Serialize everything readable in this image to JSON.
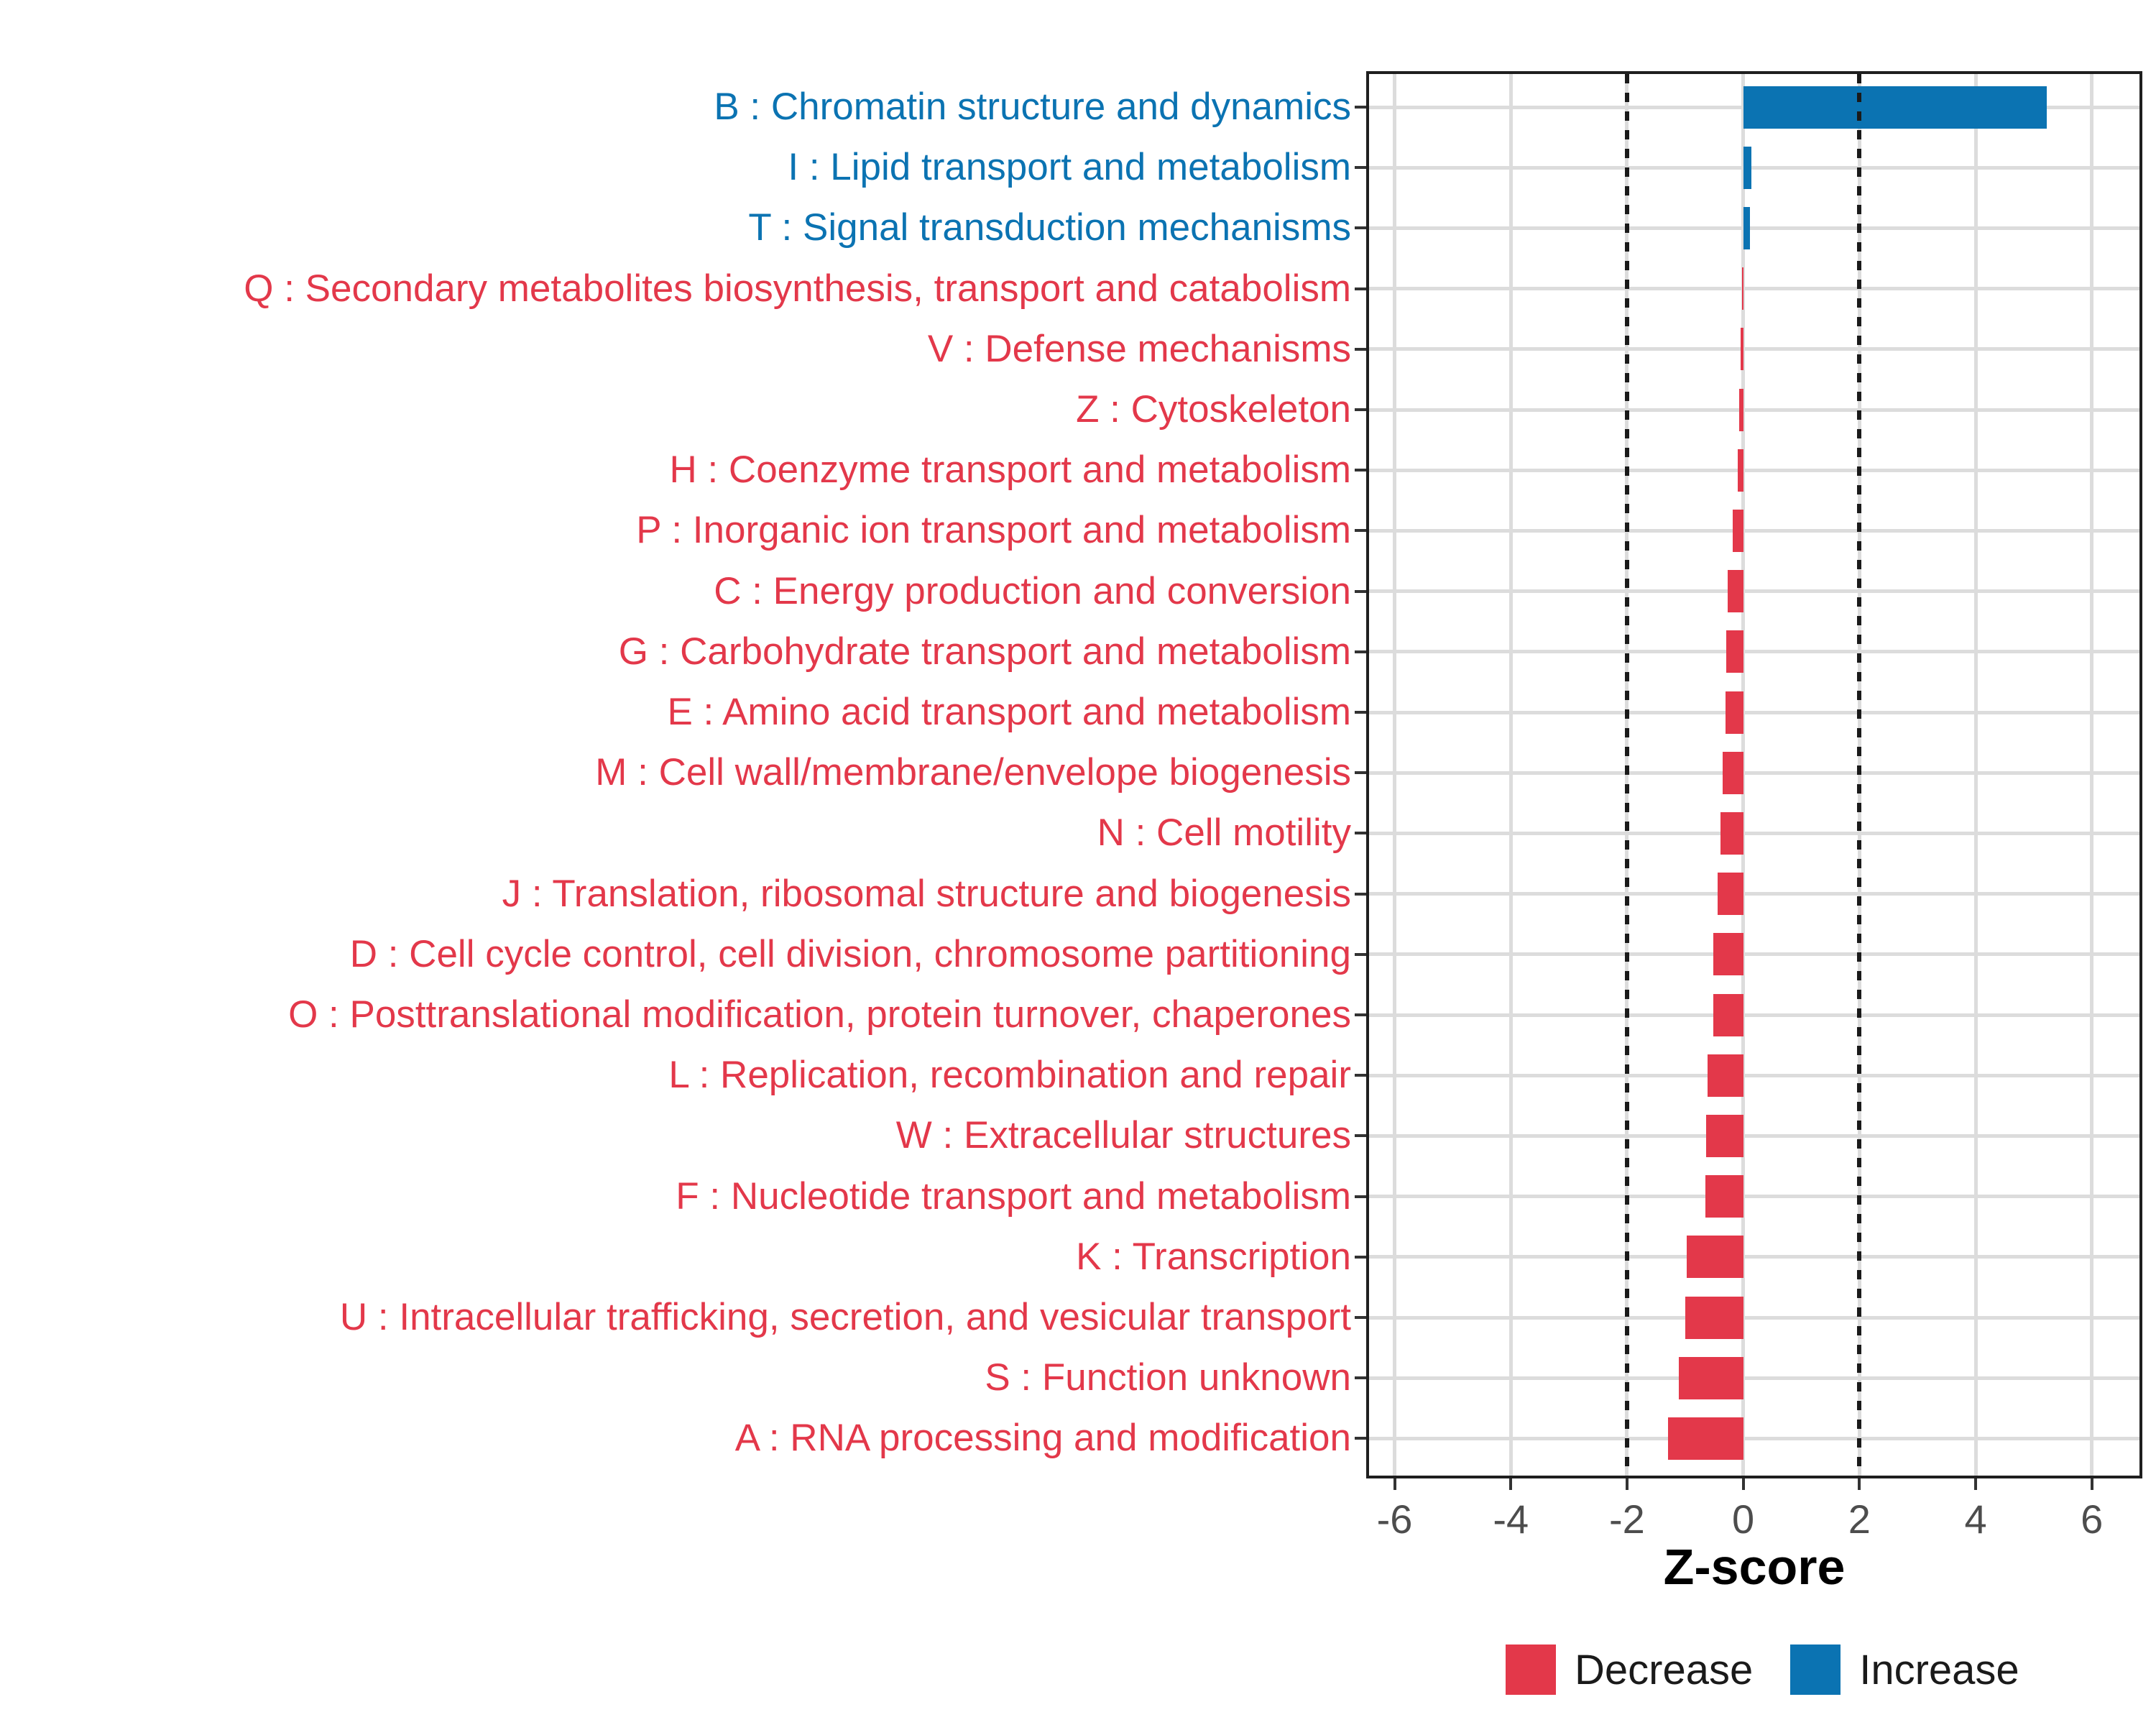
{
  "chart_data": {
    "type": "bar",
    "orientation": "horizontal",
    "title": "",
    "xlabel": "Z-score",
    "ylabel": "",
    "xlim": [
      -6.44,
      6.82
    ],
    "x_ticks": [
      -6,
      -4,
      -2,
      0,
      2,
      4,
      6
    ],
    "reference_lines": [
      -2,
      2
    ],
    "grid": "major-only",
    "legend_position": "bottom-right",
    "legend": [
      {
        "label": "Decrease",
        "color": "#e3384a"
      },
      {
        "label": "Increase",
        "color": "#0b73b2"
      }
    ],
    "categories": [
      {
        "code": "B",
        "label": "B : Chromatin structure and dynamics",
        "value": 5.22,
        "group": "Increase"
      },
      {
        "code": "I",
        "label": "I : Lipid transport and metabolism",
        "value": 0.14,
        "group": "Increase"
      },
      {
        "code": "T",
        "label": "T : Signal transduction mechanisms",
        "value": 0.12,
        "group": "Increase"
      },
      {
        "code": "Q",
        "label": "Q : Secondary metabolites biosynthesis, transport and catabolism",
        "value": -0.02,
        "group": "Decrease"
      },
      {
        "code": "V",
        "label": "V : Defense mechanisms",
        "value": -0.04,
        "group": "Decrease"
      },
      {
        "code": "Z",
        "label": "Z : Cytoskeleton",
        "value": -0.07,
        "group": "Decrease"
      },
      {
        "code": "H",
        "label": "H : Coenzyme transport and metabolism",
        "value": -0.1,
        "group": "Decrease"
      },
      {
        "code": "P",
        "label": "P : Inorganic ion transport and metabolism",
        "value": -0.18,
        "group": "Decrease"
      },
      {
        "code": "C",
        "label": "C : Energy production and conversion",
        "value": -0.27,
        "group": "Decrease"
      },
      {
        "code": "G",
        "label": "G : Carbohydrate transport and metabolism",
        "value": -0.29,
        "group": "Decrease"
      },
      {
        "code": "E",
        "label": "E : Amino acid transport and metabolism",
        "value": -0.3,
        "group": "Decrease"
      },
      {
        "code": "M",
        "label": "M : Cell wall/membrane/envelope biogenesis",
        "value": -0.36,
        "group": "Decrease"
      },
      {
        "code": "N",
        "label": "N : Cell motility",
        "value": -0.39,
        "group": "Decrease"
      },
      {
        "code": "J",
        "label": "J : Translation, ribosomal structure and biogenesis",
        "value": -0.44,
        "group": "Decrease"
      },
      {
        "code": "D",
        "label": "D : Cell cycle control, cell division, chromosome partitioning",
        "value": -0.51,
        "group": "Decrease"
      },
      {
        "code": "O",
        "label": "O : Posttranslational modification, protein turnover, chaperones",
        "value": -0.52,
        "group": "Decrease"
      },
      {
        "code": "L",
        "label": "L : Replication, recombination and repair",
        "value": -0.61,
        "group": "Decrease"
      },
      {
        "code": "W",
        "label": "W : Extracellular structures",
        "value": -0.64,
        "group": "Decrease"
      },
      {
        "code": "F",
        "label": "F : Nucleotide transport and metabolism",
        "value": -0.65,
        "group": "Decrease"
      },
      {
        "code": "K",
        "label": "K : Transcription",
        "value": -0.97,
        "group": "Decrease"
      },
      {
        "code": "U",
        "label": "U : Intracellular trafficking, secretion, and vesicular transport",
        "value": -1.0,
        "group": "Decrease"
      },
      {
        "code": "S",
        "label": "S : Function unknown",
        "value": -1.11,
        "group": "Decrease"
      },
      {
        "code": "A",
        "label": "A : RNA processing and modification",
        "value": -1.3,
        "group": "Decrease"
      }
    ]
  },
  "colors": {
    "decrease": "#e3384a",
    "increase": "#0b73b2",
    "gridline": "#dcdcdc",
    "panel_border": "#1f1f1f",
    "tick_mark": "#333333",
    "tick_label": "#4d4d4d",
    "reference_line": "#1a1a1a"
  },
  "legend": {
    "decrease_label": "Decrease",
    "increase_label": "Increase"
  }
}
